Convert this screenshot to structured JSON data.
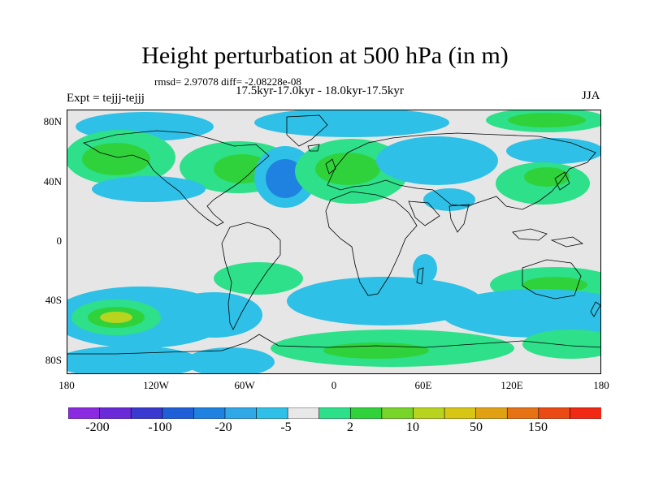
{
  "title": "Height perturbation at 500 hPa (in m)",
  "stats": "rmsd= 2.97078 diff= -2.08228e-08",
  "period": "17.5kyr-17.0kyr - 18.0kyr-17.5kyr",
  "experiment": "Expt = tejjj-tejjj",
  "season": "JJA",
  "y_ticks": [
    "80N",
    "40N",
    "0",
    "40S",
    "80S"
  ],
  "x_ticks": [
    "180",
    "120W",
    "60W",
    "0",
    "60E",
    "120E",
    "180"
  ],
  "colorbar": {
    "labels": [
      "-200",
      "-100",
      "-20",
      "-5",
      "2",
      "10",
      "50",
      "150"
    ],
    "colors": [
      "#8a2be2",
      "#6a2ad8",
      "#3a3ad0",
      "#1f5fd8",
      "#1f82e0",
      "#30a8e8",
      "#2ec0e6",
      "#e8e8e8",
      "#2ee08a",
      "#30d23c",
      "#78d428",
      "#b8d41e",
      "#d8c614",
      "#e0a214",
      "#e67214",
      "#ec4a14",
      "#f02814"
    ]
  },
  "colors": {
    "land_background": "#e6e6e6",
    "light_negative": "#2ec0e6",
    "medium_negative": "#1f82e0",
    "light_positive": "#2ee08a",
    "medium_positive": "#30d23c",
    "strong_positive": "#b8d41e"
  }
}
